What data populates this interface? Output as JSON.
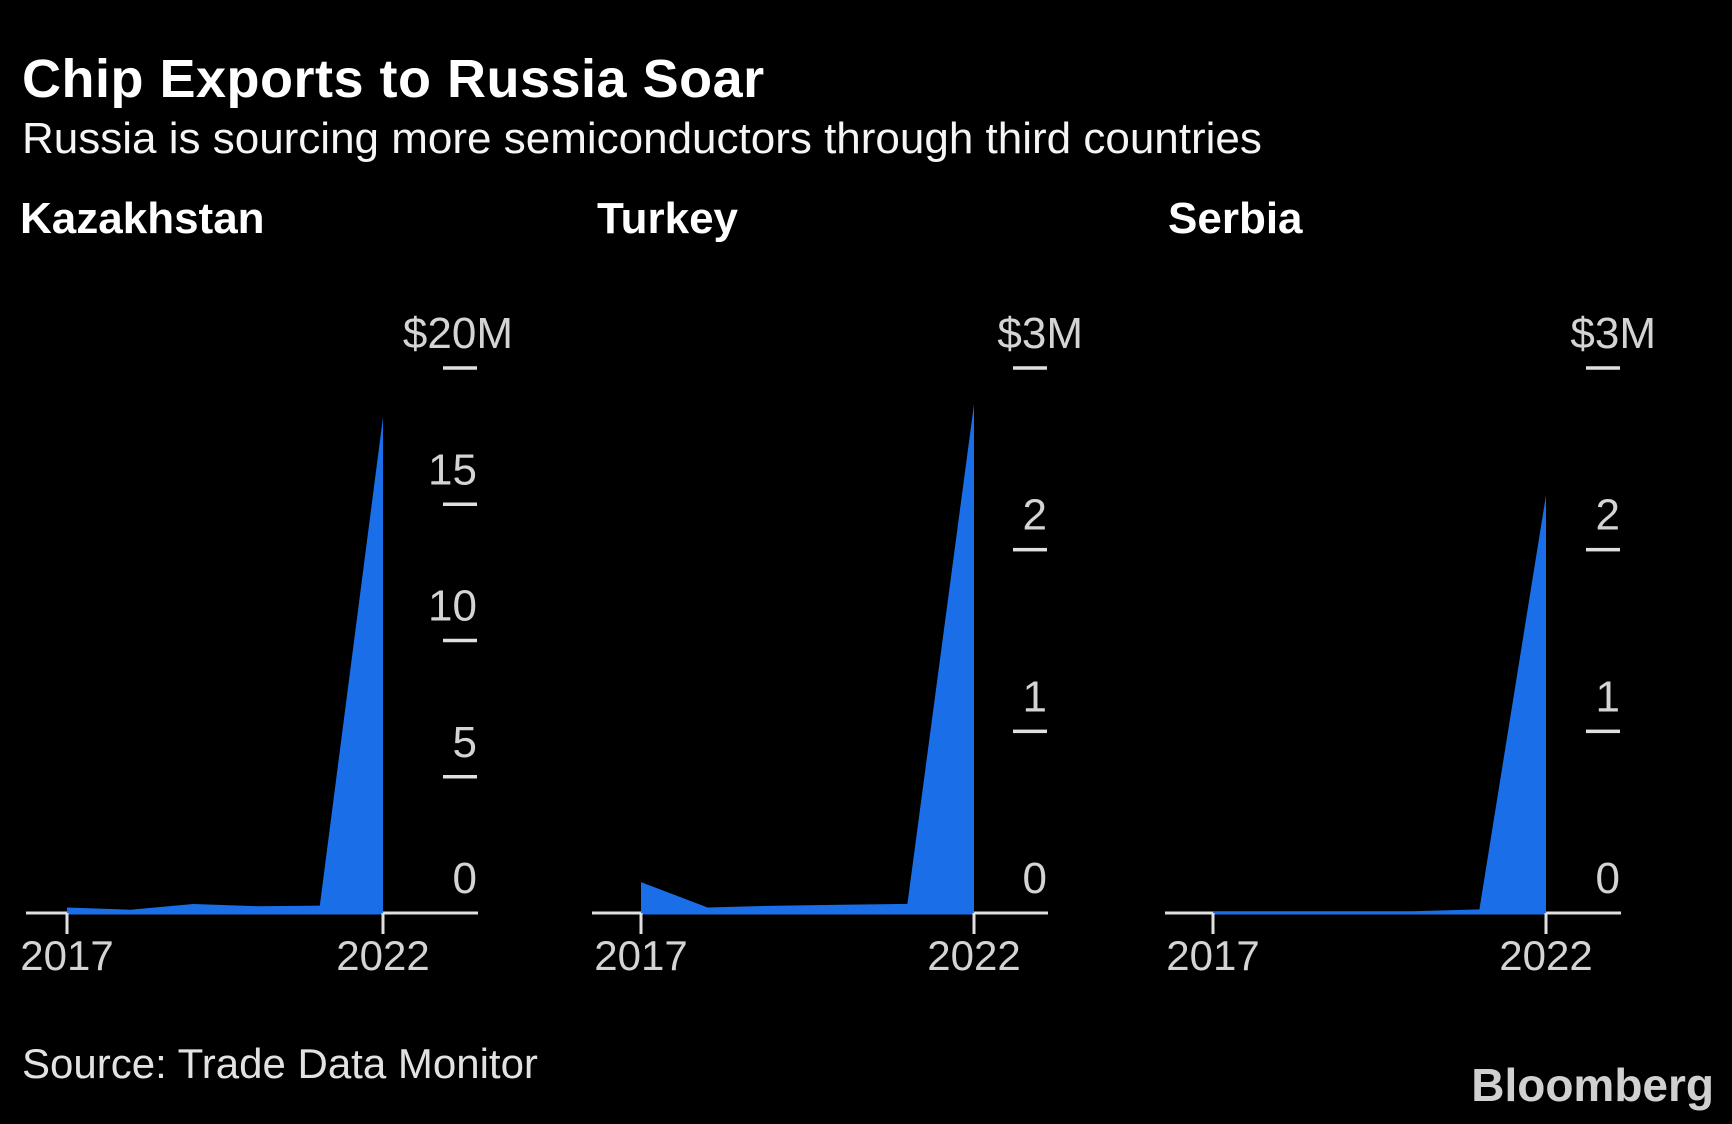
{
  "header": {
    "title": "Chip Exports to Russia Soar",
    "subtitle": "Russia is sourcing more semiconductors through third countries"
  },
  "footer": {
    "source": "Source: Trade Data Monitor",
    "brand": "Bloomberg"
  },
  "colors": {
    "background": "#000000",
    "area_fill": "#1a6fe9",
    "axis_line": "#e0e0e0",
    "tick_label": "#d4d4d4",
    "title_text": "#ffffff"
  },
  "chart_data": [
    {
      "type": "area",
      "title": "Kazakhstan",
      "x": [
        2017,
        2018,
        2019,
        2020,
        2021,
        2022
      ],
      "values": [
        0.2,
        0.12,
        0.33,
        0.25,
        0.27,
        18.2
      ],
      "unit": "$M",
      "ylim": [
        0,
        20
      ],
      "y_ticks": [
        20,
        15,
        10,
        5,
        0
      ],
      "y_tick_labels": [
        "$20M",
        "15",
        "10",
        "5",
        "0"
      ],
      "x_tick_years": [
        2017,
        2022
      ],
      "x_tick_labels": [
        "2017",
        "2022"
      ],
      "legend": "none",
      "grid": "off"
    },
    {
      "type": "area",
      "title": "Turkey",
      "x": [
        2017,
        2018,
        2019,
        2020,
        2021,
        2022
      ],
      "values": [
        0.17,
        0.03,
        0.04,
        0.045,
        0.05,
        2.8
      ],
      "unit": "$M",
      "ylim": [
        0,
        3
      ],
      "y_ticks": [
        3,
        2,
        1,
        0
      ],
      "y_tick_labels": [
        "$3M",
        "2",
        "1",
        "0"
      ],
      "x_tick_years": [
        2017,
        2022
      ],
      "x_tick_labels": [
        "2017",
        "2022"
      ],
      "legend": "none",
      "grid": "off"
    },
    {
      "type": "area",
      "title": "Serbia",
      "x": [
        2017,
        2018,
        2019,
        2020,
        2021,
        2022
      ],
      "values": [
        0.01,
        0.01,
        0.01,
        0.01,
        0.02,
        2.3
      ],
      "unit": "$M",
      "ylim": [
        0,
        3
      ],
      "y_ticks": [
        3,
        2,
        1,
        0
      ],
      "y_tick_labels": [
        "$3M",
        "2",
        "1",
        "0"
      ],
      "x_tick_years": [
        2017,
        2022
      ],
      "x_tick_labels": [
        "2017",
        "2022"
      ],
      "legend": "none",
      "grid": "off"
    }
  ]
}
